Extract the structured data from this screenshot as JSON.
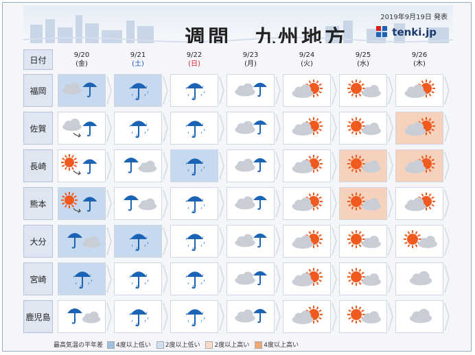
{
  "header": {
    "title": "週間　九州地方",
    "issued": "2019年9月19日 発表",
    "brand": "tenki.jp"
  },
  "date_label": "日付",
  "days": [
    {
      "date": "9/20",
      "dow": "(金)",
      "dow_color": "#222222"
    },
    {
      "date": "9/21",
      "dow": "(土)",
      "dow_color": "#1a55c4"
    },
    {
      "date": "9/22",
      "dow": "(日)",
      "dow_color": "#d62020"
    },
    {
      "date": "9/23",
      "dow": "(月)",
      "dow_color": "#222222"
    },
    {
      "date": "9/24",
      "dow": "(火)",
      "dow_color": "#222222"
    },
    {
      "date": "9/25",
      "dow": "(水)",
      "dow_color": "#222222"
    },
    {
      "date": "9/26",
      "dow": "(木)",
      "dow_color": "#222222"
    }
  ],
  "rows": [
    {
      "region": "福岡",
      "cells": [
        {
          "icon": "cloud-then-rain",
          "temp": "cold"
        },
        {
          "icon": "rain",
          "temp": "cold"
        },
        {
          "icon": "rain",
          "temp": ""
        },
        {
          "icon": "cloud-rain-chance",
          "temp": ""
        },
        {
          "icon": "cloud-sun",
          "temp": ""
        },
        {
          "icon": "sun-cloud",
          "temp": ""
        },
        {
          "icon": "cloud-sun",
          "temp": ""
        }
      ]
    },
    {
      "region": "佐賀",
      "cells": [
        {
          "icon": "cloud-then-rain-arrow",
          "temp": ""
        },
        {
          "icon": "rain",
          "temp": ""
        },
        {
          "icon": "rain",
          "temp": ""
        },
        {
          "icon": "cloud-rain-chance",
          "temp": ""
        },
        {
          "icon": "cloud-sun",
          "temp": ""
        },
        {
          "icon": "sun-cloud",
          "temp": ""
        },
        {
          "icon": "cloud-sun",
          "temp": "warm"
        }
      ]
    },
    {
      "region": "長崎",
      "cells": [
        {
          "icon": "sun-then-rain-arrow",
          "temp": ""
        },
        {
          "icon": "rain-cloud",
          "temp": ""
        },
        {
          "icon": "rain",
          "temp": "cold"
        },
        {
          "icon": "cloud-rain-chance",
          "temp": ""
        },
        {
          "icon": "cloud-sun",
          "temp": ""
        },
        {
          "icon": "sun-cloud",
          "temp": "warm"
        },
        {
          "icon": "cloud-sun",
          "temp": "warm"
        }
      ]
    },
    {
      "region": "熊本",
      "cells": [
        {
          "icon": "sun-then-rain-arrow",
          "temp": "cold"
        },
        {
          "icon": "rain-cloud",
          "temp": ""
        },
        {
          "icon": "rain",
          "temp": ""
        },
        {
          "icon": "cloud-rain-chance",
          "temp": ""
        },
        {
          "icon": "cloud-sun",
          "temp": ""
        },
        {
          "icon": "sun-cloud",
          "temp": "warm"
        },
        {
          "icon": "cloud-sun",
          "temp": ""
        }
      ]
    },
    {
      "region": "大分",
      "cells": [
        {
          "icon": "rain-cloud",
          "temp": "cold"
        },
        {
          "icon": "rain",
          "temp": "cold"
        },
        {
          "icon": "rain",
          "temp": ""
        },
        {
          "icon": "cloud-rain-chance",
          "temp": ""
        },
        {
          "icon": "cloud-sun",
          "temp": ""
        },
        {
          "icon": "sun-cloud",
          "temp": ""
        },
        {
          "icon": "sun-cloud",
          "temp": ""
        }
      ]
    },
    {
      "region": "宮崎",
      "cells": [
        {
          "icon": "rain",
          "temp": "cold"
        },
        {
          "icon": "rain",
          "temp": ""
        },
        {
          "icon": "rain",
          "temp": ""
        },
        {
          "icon": "cloud-rain-chance",
          "temp": ""
        },
        {
          "icon": "cloud-sun",
          "temp": ""
        },
        {
          "icon": "sun-cloud",
          "temp": ""
        },
        {
          "icon": "cloud",
          "temp": ""
        }
      ]
    },
    {
      "region": "鹿児島",
      "cells": [
        {
          "icon": "rain-cloud",
          "temp": ""
        },
        {
          "icon": "rain",
          "temp": ""
        },
        {
          "icon": "rain",
          "temp": ""
        },
        {
          "icon": "cloud-rain-chance",
          "temp": ""
        },
        {
          "icon": "cloud-sun",
          "temp": ""
        },
        {
          "icon": "sun-cloud",
          "temp": ""
        },
        {
          "icon": "cloud",
          "temp": ""
        }
      ]
    }
  ],
  "legend": {
    "title": "最高気温の平年差",
    "items": [
      {
        "label": "4度以上低い",
        "color": "#9fbfe3"
      },
      {
        "label": "2度以上低い",
        "color": "#cfe0f2"
      },
      {
        "label": "2度以上高い",
        "color": "#f8dcc8"
      },
      {
        "label": "4度以上高い",
        "color": "#f0a877"
      }
    ]
  },
  "colors": {
    "umbrella": "#1b63b5",
    "sun": "#f05a1e",
    "cloud": "#c9ced6",
    "cold_cell": "#c6d9ef",
    "warm_cell": "#f6d2bd"
  }
}
